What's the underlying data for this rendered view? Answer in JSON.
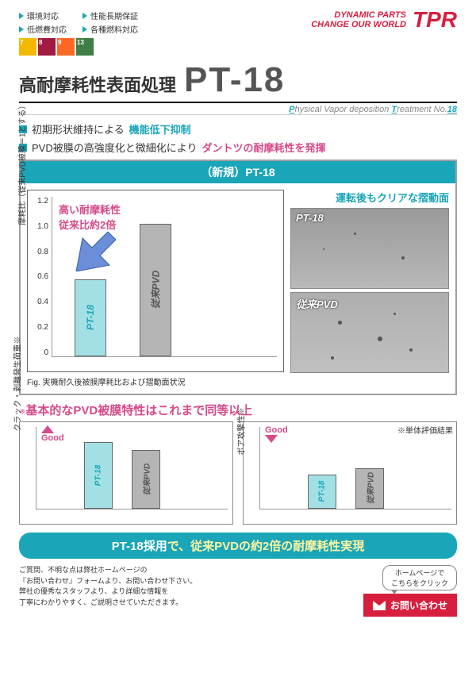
{
  "colors": {
    "teal": "#1aa6b8",
    "teal_light": "#a3e0e6",
    "pink": "#d64a8a",
    "red": "#d81e3f",
    "gray_bar": "#b5b5b5",
    "arrow_blue": "#6a8fd8",
    "border": "#a0a0a0"
  },
  "header": {
    "tags_left": [
      "環境対応",
      "低燃費対応"
    ],
    "tags_right": [
      "性能長期保証",
      "各種燃料対応"
    ],
    "slogan1": "DYNAMIC PARTS",
    "slogan2": "CHANGE OUR WORLD",
    "logo": "TPR",
    "sdg": [
      {
        "n": "7",
        "c": "#f5b800"
      },
      {
        "n": "8",
        "c": "#a21942"
      },
      {
        "n": "9",
        "c": "#fd6925"
      },
      {
        "n": "13",
        "c": "#3f7e44"
      }
    ]
  },
  "title": {
    "jp": "高耐摩耗性表面処理",
    "code": "PT-18",
    "subtitle_pre": "P",
    "subtitle_1": "hysical Vapor deposition ",
    "subtitle_pre2": "T",
    "subtitle_2": "reatment No.",
    "subtitle_num": "18"
  },
  "bullets": [
    {
      "t1": "初期形状維持による",
      "t2": "機能低下抑制",
      "c2": "#1aa6b8"
    },
    {
      "t1": "PVD被膜の高強度化と微細化により",
      "t2": "ダントツの耐摩耗性を発揮",
      "c2": "#d64a8a"
    }
  ],
  "panel": {
    "header": "（新規）PT-18",
    "chart": {
      "ylabel": "摩耗比（従来PVD被膜＝1とする）",
      "ymax": 1.2,
      "yticks": [
        "1.2",
        "1.0",
        "0.8",
        "0.6",
        "0.4",
        "0.2",
        "0"
      ],
      "bars": [
        {
          "label": "PT-18",
          "v": 0.58,
          "fill": "#a3e0e6",
          "text": "#1aa6b8",
          "x": 28
        },
        {
          "label": "従来PVD",
          "v": 1.0,
          "fill": "#b5b5b5",
          "text": "#555",
          "x": 110
        }
      ],
      "annot1": "高い耐摩耗性",
      "annot2": "従来比約2倍",
      "caption": "Fig. 実機耐久後被膜摩耗比および摺動面状況"
    },
    "images": {
      "title": "運転後もクリアな摺動面",
      "top_label": "PT-18",
      "bottom_label": "従来PVD"
    }
  },
  "section2": {
    "title": "基本的なPVD被膜特性はこれまで同等以上",
    "note": "※単体評価結果",
    "charts": [
      {
        "ylabel": "クラック・剥離発生荷重※",
        "good": "Good",
        "good_color": "#d64a8a",
        "arrow_dir": "up",
        "bars": [
          {
            "label": "PT-18",
            "v": 0.82,
            "fill": "#a3e0e6",
            "text": "#1aa6b8"
          },
          {
            "label": "従来PVD",
            "v": 0.72,
            "fill": "#b5b5b5",
            "text": "#555"
          }
        ]
      },
      {
        "ylabel": "ボア攻撃性※",
        "good": "Good",
        "good_color": "#d64a8a",
        "arrow_dir": "down",
        "bars": [
          {
            "label": "PT-18",
            "v": 0.42,
            "fill": "#a3e0e6",
            "text": "#1aa6b8"
          },
          {
            "label": "従来PVD",
            "v": 0.5,
            "fill": "#b5b5b5",
            "text": "#555"
          }
        ]
      }
    ]
  },
  "conclusion": {
    "bg": "#1aa6b8",
    "t1": "PT-18採用",
    "t2": "で、従来PVDの約2倍の耐摩耗性実現"
  },
  "footer": {
    "text": "ご質問、不明な点は弊社ホームページの\n『お問い合わせ』フォームより、お問い合わせ下さい。\n弊社の優秀なスタッフより、より詳細な情報を\n丁寧にわかりやすく、ご説明させていただきます。",
    "link_btn1": "ホームページで",
    "link_btn2": "こちらをクリック",
    "contact": "お問い合わせ"
  }
}
